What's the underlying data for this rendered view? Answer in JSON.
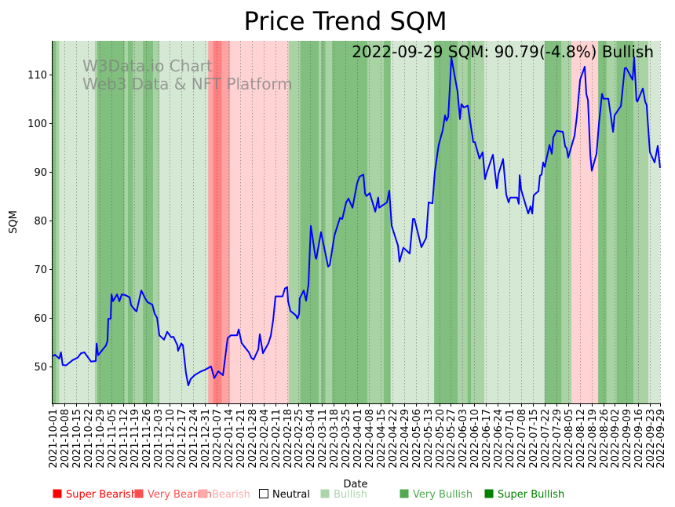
{
  "chart_data": {
    "type": "line",
    "title": "Price Trend SQM",
    "xlabel": "Date",
    "ylabel": "SQM",
    "annotation": "2022-09-29 SQM: 90.79(-4.8%) Bullish",
    "watermark": [
      "W3Data.io Chart",
      "Web3 Data & NFT Platform"
    ],
    "x_start_date": "2021-10-01",
    "x_unit": "days since 2021-10-01",
    "xlim": [
      0,
      363
    ],
    "ylim": [
      42.4,
      116.9
    ],
    "yticks": [
      50,
      60,
      70,
      80,
      90,
      100,
      110
    ],
    "xtick_labels": [
      "2021-10-01",
      "2021-10-08",
      "2021-10-15",
      "2021-10-22",
      "2021-10-29",
      "2021-11-05",
      "2021-11-12",
      "2021-11-19",
      "2021-11-26",
      "2021-12-03",
      "2021-12-10",
      "2021-12-17",
      "2021-12-24",
      "2021-12-31",
      "2022-01-07",
      "2022-01-14",
      "2022-01-21",
      "2022-01-28",
      "2022-02-04",
      "2022-02-11",
      "2022-02-18",
      "2022-02-25",
      "2022-03-04",
      "2022-03-11",
      "2022-03-18",
      "2022-03-25",
      "2022-04-01",
      "2022-04-08",
      "2022-04-15",
      "2022-04-22",
      "2022-04-29",
      "2022-05-06",
      "2022-05-13",
      "2022-05-20",
      "2022-05-27",
      "2022-06-03",
      "2022-06-10",
      "2022-06-17",
      "2022-06-24",
      "2022-07-01",
      "2022-07-08",
      "2022-07-15",
      "2022-07-22",
      "2022-07-29",
      "2022-08-05",
      "2022-08-12",
      "2022-08-19",
      "2022-08-26",
      "2022-09-02",
      "2022-09-09",
      "2022-09-16",
      "2022-09-23",
      "2022-09-29"
    ],
    "xtick_days": [
      0,
      7,
      14,
      21,
      28,
      35,
      42,
      49,
      56,
      63,
      70,
      77,
      84,
      91,
      98,
      105,
      112,
      119,
      126,
      133,
      140,
      147,
      154,
      161,
      168,
      175,
      182,
      189,
      196,
      203,
      210,
      217,
      224,
      231,
      238,
      245,
      252,
      259,
      266,
      273,
      280,
      287,
      294,
      301,
      308,
      315,
      322,
      329,
      336,
      343,
      350,
      357,
      363
    ],
    "grid": "vertical dotted at x ticks",
    "line_color": "#0000ff",
    "sentiment_colors": {
      "Super Bearish": "#ff0000",
      "Very Bearish": "#ff5050",
      "Bearish": "#ffaaaa",
      "Neutral": "#ffffff",
      "Bullish": "#aad4aa",
      "Very Bullish": "#50a850",
      "Super Bullish": "#008000"
    },
    "band_colors": {
      "Super Bearish": "#ff8080",
      "Very Bearish": "#ffa3a3",
      "Bearish": "#ffd3d3",
      "Bullish": "#d5e8d4",
      "Very Bullish": "#a9d3a5",
      "Super Bullish": "#80bf7e"
    },
    "bands": [
      [
        0,
        2,
        "Super Bullish"
      ],
      [
        2,
        4,
        "Very Bullish"
      ],
      [
        4,
        25.3,
        "Bullish"
      ],
      [
        25.3,
        26.7,
        "Very Bullish"
      ],
      [
        26.7,
        43,
        "Super Bullish"
      ],
      [
        43,
        45,
        "Very Bullish"
      ],
      [
        45,
        48,
        "Super Bullish"
      ],
      [
        48,
        54,
        "Very Bullish"
      ],
      [
        54,
        60,
        "Super Bullish"
      ],
      [
        60,
        64,
        "Very Bullish"
      ],
      [
        64,
        93,
        "Bullish"
      ],
      [
        93,
        96,
        "Very Bearish"
      ],
      [
        96,
        101,
        "Super Bearish"
      ],
      [
        101,
        106,
        "Very Bearish"
      ],
      [
        106,
        141,
        "Bearish"
      ],
      [
        141,
        148,
        "Very Bullish"
      ],
      [
        148,
        159,
        "Super Bullish"
      ],
      [
        159,
        160.5,
        "Very Bullish"
      ],
      [
        160.5,
        163,
        "Super Bullish"
      ],
      [
        163,
        167,
        "Very Bullish"
      ],
      [
        167,
        188,
        "Super Bullish"
      ],
      [
        188,
        198,
        "Very Bullish"
      ],
      [
        198,
        202,
        "Super Bullish"
      ],
      [
        202,
        228,
        "Bullish"
      ],
      [
        228,
        242,
        "Super Bullish"
      ],
      [
        242,
        248,
        "Very Bullish"
      ],
      [
        248,
        250,
        "Super Bullish"
      ],
      [
        250,
        258,
        "Very Bullish"
      ],
      [
        258,
        294,
        "Bullish"
      ],
      [
        294,
        304,
        "Super Bullish"
      ],
      [
        304,
        310,
        "Very Bullish"
      ],
      [
        310,
        326,
        "Bearish"
      ],
      [
        326,
        331,
        "Super Bullish"
      ],
      [
        331,
        337,
        "Very Bullish"
      ],
      [
        337,
        347,
        "Super Bullish"
      ],
      [
        347,
        356,
        "Very Bullish"
      ],
      [
        356,
        363,
        "Bullish"
      ]
    ],
    "series": [
      {
        "name": "SQM",
        "points": [
          [
            0,
            52.1
          ],
          [
            1.4,
            52.4
          ],
          [
            4,
            51.6
          ],
          [
            5,
            52.9
          ],
          [
            6,
            50.3
          ],
          [
            8,
            50.2
          ],
          [
            12,
            51.3
          ],
          [
            15,
            51.8
          ],
          [
            17,
            52.7
          ],
          [
            19,
            52.9
          ],
          [
            23,
            51.0
          ],
          [
            25.8,
            51.1
          ],
          [
            26.3,
            54.7
          ],
          [
            27.2,
            52.3
          ],
          [
            31.9,
            54.3
          ],
          [
            32.8,
            55.2
          ],
          [
            33.3,
            59.8
          ],
          [
            34.7,
            59.8
          ],
          [
            35.2,
            64.8
          ],
          [
            36.1,
            63.4
          ],
          [
            38.5,
            64.8
          ],
          [
            39.9,
            63.4
          ],
          [
            41.3,
            64.8
          ],
          [
            43.1,
            64.7
          ],
          [
            46.0,
            64.2
          ],
          [
            46.9,
            62.6
          ],
          [
            49.2,
            61.6
          ],
          [
            50.2,
            61.3
          ],
          [
            53.0,
            65.6
          ],
          [
            55.3,
            64.0
          ],
          [
            56.7,
            63.2
          ],
          [
            59.6,
            62.7
          ],
          [
            61.0,
            60.8
          ],
          [
            62.4,
            60.0
          ],
          [
            63.8,
            56.4
          ],
          [
            66.6,
            55.5
          ],
          [
            68.5,
            57.1
          ],
          [
            70.8,
            56.0
          ],
          [
            72.2,
            56.1
          ],
          [
            74.6,
            54.3
          ],
          [
            75.0,
            53.2
          ],
          [
            76.9,
            54.7
          ],
          [
            77.9,
            54.3
          ],
          [
            79.7,
            48.7
          ],
          [
            81.1,
            46.1
          ],
          [
            82.5,
            47.4
          ],
          [
            84.9,
            48.2
          ],
          [
            88.2,
            48.9
          ],
          [
            91.0,
            49.3
          ],
          [
            94.7,
            50.0
          ],
          [
            96.6,
            47.6
          ],
          [
            99.0,
            49.0
          ],
          [
            101.8,
            48.2
          ],
          [
            104.6,
            55.8
          ],
          [
            106.5,
            56.4
          ],
          [
            110.2,
            56.4
          ],
          [
            111.2,
            57.6
          ],
          [
            113.0,
            54.8
          ],
          [
            115.4,
            53.7
          ],
          [
            117.3,
            52.9
          ],
          [
            118.7,
            51.8
          ],
          [
            120.1,
            51.4
          ],
          [
            122.9,
            53.5
          ],
          [
            123.8,
            56.6
          ],
          [
            125.7,
            52.7
          ],
          [
            129.0,
            54.8
          ],
          [
            130.4,
            56.3
          ],
          [
            131.8,
            59.5
          ],
          [
            133.2,
            64.4
          ],
          [
            137.4,
            64.4
          ],
          [
            138.8,
            66.0
          ],
          [
            140.2,
            66.3
          ],
          [
            140.7,
            63.4
          ],
          [
            142.1,
            61.4
          ],
          [
            145.4,
            60.5
          ],
          [
            146.3,
            59.8
          ],
          [
            147.3,
            60.8
          ],
          [
            147.7,
            64.0
          ],
          [
            150.1,
            65.6
          ],
          [
            151.5,
            63.5
          ],
          [
            152.9,
            66.8
          ],
          [
            154.3,
            78.9
          ],
          [
            157.1,
            72.4
          ],
          [
            157.6,
            72.1
          ],
          [
            160.4,
            77.6
          ],
          [
            163.7,
            72.1
          ],
          [
            164.6,
            70.5
          ],
          [
            165.6,
            70.8
          ],
          [
            168.4,
            76.9
          ],
          [
            171.7,
            80.5
          ],
          [
            173.1,
            80.3
          ],
          [
            175.4,
            83.7
          ],
          [
            176.8,
            84.5
          ],
          [
            179.2,
            82.6
          ],
          [
            182.0,
            87.7
          ],
          [
            183.4,
            89.0
          ],
          [
            185.7,
            89.4
          ],
          [
            186.7,
            85.5
          ],
          [
            187.6,
            85.0
          ],
          [
            189.5,
            85.6
          ],
          [
            192.8,
            81.8
          ],
          [
            194.6,
            84.7
          ],
          [
            195.1,
            82.6
          ],
          [
            199.8,
            83.7
          ],
          [
            201.2,
            86.1
          ],
          [
            202.6,
            78.9
          ],
          [
            206.4,
            74.8
          ],
          [
            207.3,
            71.5
          ],
          [
            209.6,
            74.4
          ],
          [
            213.4,
            73.2
          ],
          [
            215.3,
            80.3
          ],
          [
            216.2,
            80.3
          ],
          [
            220.4,
            74.5
          ],
          [
            223.2,
            76.4
          ],
          [
            224.7,
            83.7
          ],
          [
            227.0,
            83.5
          ],
          [
            228.4,
            90.0
          ],
          [
            230.7,
            95.5
          ],
          [
            233.1,
            98.5
          ],
          [
            234.5,
            101.6
          ],
          [
            235.4,
            100.5
          ],
          [
            236.4,
            101.3
          ],
          [
            238.3,
            113.4
          ],
          [
            242.0,
            106.4
          ],
          [
            243.4,
            100.8
          ],
          [
            244.3,
            103.9
          ],
          [
            245.8,
            103.2
          ],
          [
            248.1,
            103.6
          ],
          [
            251.4,
            96.1
          ],
          [
            252.3,
            96.1
          ],
          [
            255.1,
            92.7
          ],
          [
            257.0,
            94.0
          ],
          [
            258.4,
            88.5
          ],
          [
            259.4,
            89.8
          ],
          [
            263.1,
            93.5
          ],
          [
            265.5,
            86.6
          ],
          [
            266.4,
            89.5
          ],
          [
            269.2,
            92.6
          ],
          [
            271.1,
            85.3
          ],
          [
            272.5,
            83.7
          ],
          [
            273.4,
            84.7
          ],
          [
            277.6,
            84.7
          ],
          [
            278.6,
            83.4
          ],
          [
            279.1,
            89.3
          ],
          [
            280.0,
            86.3
          ],
          [
            284.2,
            81.4
          ],
          [
            285.6,
            82.9
          ],
          [
            286.6,
            81.4
          ],
          [
            287.5,
            85.2
          ],
          [
            290.3,
            86.0
          ],
          [
            291.2,
            89.2
          ],
          [
            292.2,
            89.4
          ],
          [
            293.1,
            91.9
          ],
          [
            294.1,
            91.0
          ],
          [
            296.9,
            95.5
          ],
          [
            298.3,
            93.7
          ],
          [
            299.2,
            97.1
          ],
          [
            301.1,
            98.4
          ],
          [
            304.9,
            98.2
          ],
          [
            306.3,
            95.2
          ],
          [
            307.2,
            94.8
          ],
          [
            308.1,
            92.9
          ],
          [
            311.9,
            97.4
          ],
          [
            313.3,
            101.4
          ],
          [
            315.2,
            108.9
          ],
          [
            318.0,
            111.6
          ],
          [
            318.9,
            106.0
          ],
          [
            319.9,
            104.7
          ],
          [
            321.3,
            93.5
          ],
          [
            322.2,
            90.2
          ],
          [
            325.0,
            93.7
          ],
          [
            326.4,
            99.7
          ],
          [
            328.3,
            106.0
          ],
          [
            329.2,
            105.0
          ],
          [
            332.1,
            105.0
          ],
          [
            334.9,
            98.2
          ],
          [
            335.8,
            101.6
          ],
          [
            339.6,
            103.5
          ],
          [
            341.9,
            111.3
          ],
          [
            342.8,
            111.3
          ],
          [
            346.6,
            108.9
          ],
          [
            347.5,
            113.5
          ],
          [
            348.9,
            104.7
          ],
          [
            349.4,
            104.4
          ],
          [
            352.7,
            107.1
          ],
          [
            354.1,
            104.4
          ],
          [
            355.0,
            103.7
          ],
          [
            356.9,
            94.0
          ],
          [
            359.7,
            91.9
          ],
          [
            361.6,
            95.3
          ],
          [
            363,
            90.79
          ]
        ]
      }
    ],
    "legend": {
      "placement": "bottom",
      "items": [
        "Super Bearish",
        "Very Bearish",
        "Bearish",
        "Neutral",
        "Bullish",
        "Very Bullish",
        "Super Bullish"
      ]
    }
  }
}
